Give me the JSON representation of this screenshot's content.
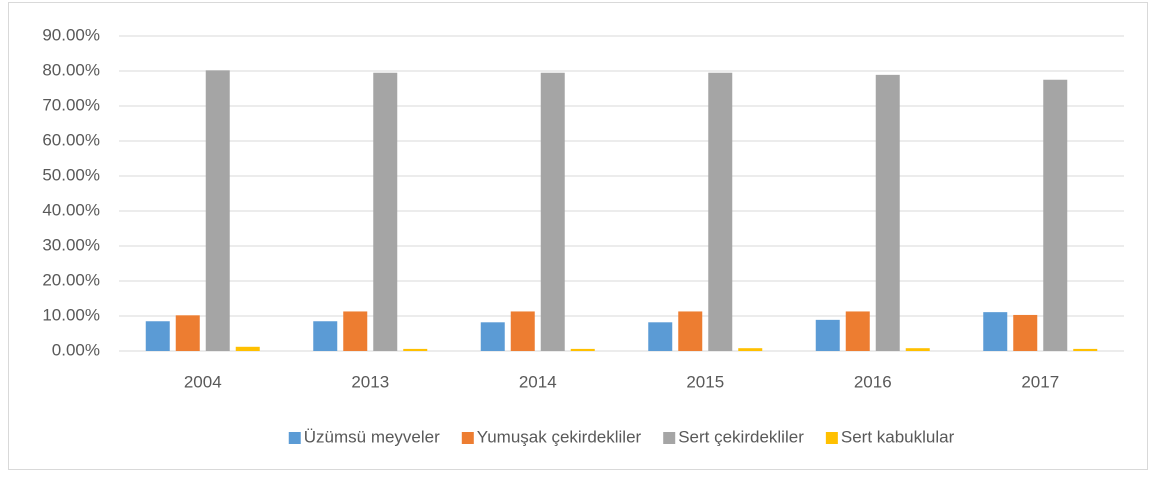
{
  "chart_data": {
    "type": "bar",
    "categories": [
      "2004",
      "2013",
      "2014",
      "2015",
      "2016",
      "2017"
    ],
    "series": [
      {
        "name": "Üzümsü meyveler",
        "color": "#5b9bd5",
        "values": [
          8.5,
          8.5,
          8.2,
          8.2,
          8.9,
          11.1
        ]
      },
      {
        "name": "Yumuşak çekirdekliler",
        "color": "#ed7d31",
        "values": [
          10.2,
          11.3,
          11.3,
          11.3,
          11.3,
          10.3
        ]
      },
      {
        "name": "Sert çekirdekliler",
        "color": "#a5a5a5",
        "values": [
          80.2,
          79.5,
          79.5,
          79.5,
          78.9,
          77.5
        ]
      },
      {
        "name": "Sert kabuklular",
        "color": "#ffc000",
        "values": [
          1.2,
          0.6,
          0.6,
          0.8,
          0.8,
          0.6
        ]
      }
    ],
    "ylim": [
      0,
      90
    ],
    "yticks": [
      {
        "value": 0,
        "label": "0.00%"
      },
      {
        "value": 10,
        "label": "10.00%"
      },
      {
        "value": 20,
        "label": "20.00%"
      },
      {
        "value": 30,
        "label": "30.00%"
      },
      {
        "value": 40,
        "label": "40.00%"
      },
      {
        "value": 50,
        "label": "50.00%"
      },
      {
        "value": 60,
        "label": "60.00%"
      },
      {
        "value": 70,
        "label": "70.00%"
      },
      {
        "value": 80,
        "label": "80.00%"
      },
      {
        "value": 90,
        "label": "90.00%"
      }
    ],
    "grid": true,
    "legend": "bottom"
  }
}
